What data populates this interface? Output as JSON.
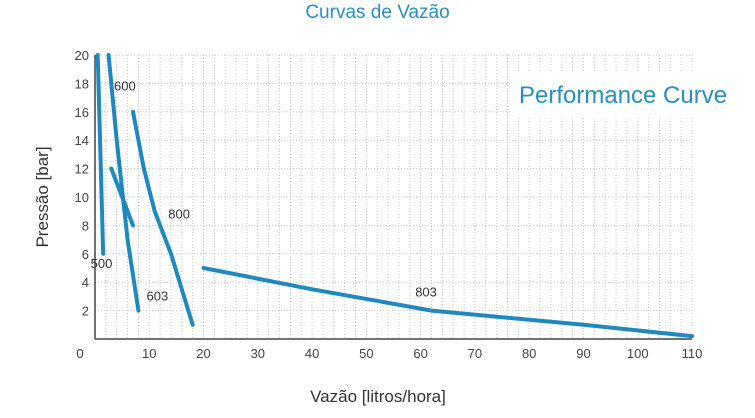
{
  "chart_data": {
    "type": "line",
    "title": "Curvas de Vazão",
    "subtitle": "Performance Curve",
    "xlabel": "Vazão [litros/hora]",
    "ylabel": "Pressão [bar]",
    "xlim": [
      0,
      110
    ],
    "ylim": [
      0,
      20
    ],
    "xticks": [
      0,
      10,
      20,
      30,
      40,
      50,
      60,
      70,
      80,
      90,
      100,
      110
    ],
    "yticks": [
      2,
      4,
      6,
      8,
      10,
      12,
      14,
      16,
      18,
      20
    ],
    "grid": true,
    "color": "#1f88bd",
    "series": [
      {
        "name": "500",
        "x": [
          0.5,
          1.5
        ],
        "y": [
          20,
          6
        ]
      },
      {
        "name": "600",
        "x": [
          2.5,
          4,
          6,
          8
        ],
        "y": [
          20,
          14,
          7,
          2
        ]
      },
      {
        "name": "603",
        "x": [
          3,
          5,
          7
        ],
        "y": [
          12,
          10,
          8
        ]
      },
      {
        "name": "800",
        "x": [
          7,
          9,
          11,
          14,
          16,
          18
        ],
        "y": [
          16,
          12,
          9,
          6,
          3.5,
          1
        ]
      },
      {
        "name": "803",
        "x": [
          20,
          40,
          62,
          90,
          110
        ],
        "y": [
          5,
          3.5,
          2,
          1,
          0.2
        ]
      }
    ]
  }
}
